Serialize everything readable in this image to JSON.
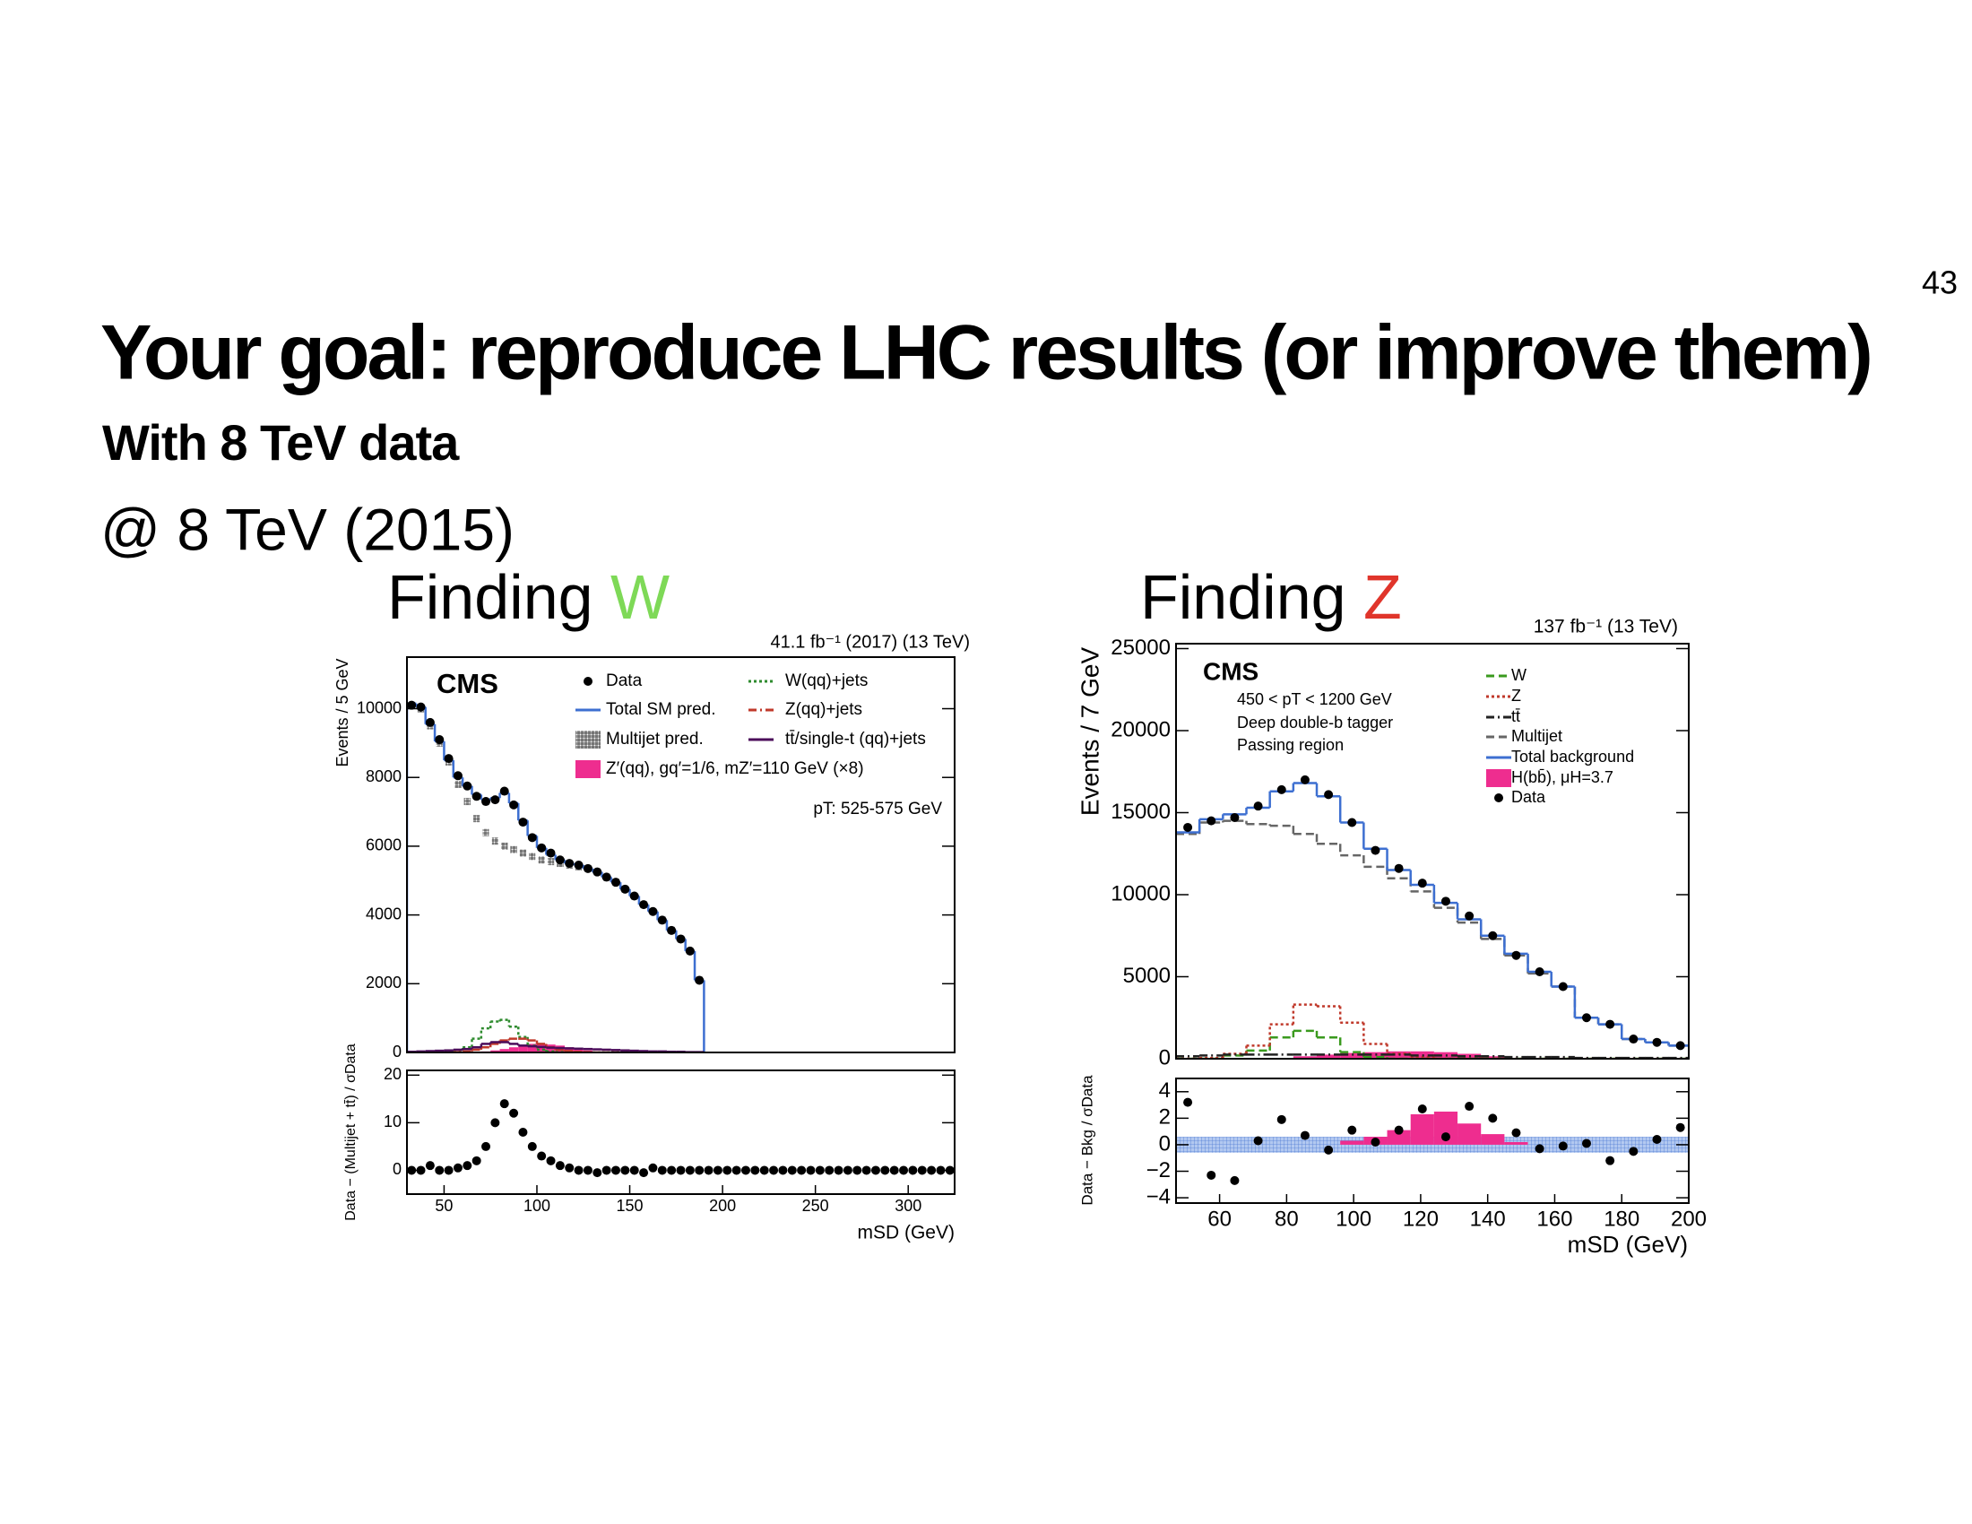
{
  "slide_number": "43",
  "title": "Your goal: reproduce LHC results (or improve them)",
  "subtitle": "With 8 TeV data",
  "note": "@ 8 TeV (2015)",
  "panels": [
    {
      "text": "Finding",
      "highlight": "W",
      "color": "#7ed957"
    },
    {
      "text": "Finding",
      "highlight": "Z",
      "color": "#e0352b"
    }
  ],
  "chart_data": [
    {
      "type": "histogram",
      "experiment": "CMS",
      "lumi": "41.1 fb⁻¹ (2017) (13 TeV)",
      "notes": [
        "pT: 525-575 GeV"
      ],
      "ylabel": "Events / 5 GeV",
      "xlim": [
        30,
        325
      ],
      "ylim": [
        0,
        11500
      ],
      "yticks": [
        0,
        2000,
        4000,
        6000,
        8000,
        10000
      ],
      "x": [
        32.5,
        37.5,
        42.5,
        47.5,
        52.5,
        57.5,
        62.5,
        67.5,
        72.5,
        77.5,
        82.5,
        87.5,
        92.5,
        97.5,
        102.5,
        107.5,
        112.5,
        117.5,
        122.5,
        127.5,
        132.5,
        137.5,
        142.5,
        147.5,
        152.5,
        157.5,
        162.5,
        167.5,
        172.5,
        177.5,
        182.5,
        187.5
      ],
      "series": [
        {
          "name": "Data",
          "color": "#000000",
          "style": "points",
          "values": [
            10100,
            10050,
            9600,
            9100,
            8550,
            8050,
            7750,
            7450,
            7300,
            7350,
            7600,
            7200,
            6700,
            6250,
            5950,
            5800,
            5600,
            5500,
            5450,
            5350,
            5250,
            5100,
            4950,
            4750,
            4550,
            4300,
            4100,
            3850,
            3550,
            3300,
            2950,
            2100
          ]
        },
        {
          "name": "Total SM pred.",
          "color": "#3d6fd1",
          "style": "step",
          "closed": true,
          "values": [
            10150,
            10050,
            9550,
            9050,
            8500,
            8000,
            7750,
            7500,
            7350,
            7400,
            7550,
            7250,
            6750,
            6300,
            5950,
            5750,
            5600,
            5500,
            5450,
            5350,
            5250,
            5100,
            4950,
            4750,
            4550,
            4300,
            4100,
            3850,
            3550,
            3300,
            2950,
            2100
          ]
        },
        {
          "name": "Multijet pred.",
          "color": "#333333",
          "style": "hatch",
          "values": [
            10100,
            10000,
            9500,
            9000,
            8450,
            7800,
            7300,
            6800,
            6400,
            6150,
            6000,
            5900,
            5800,
            5700,
            5600,
            5550,
            5500,
            5450,
            5400,
            5350,
            5250,
            5100,
            4950,
            4750,
            4550,
            4300,
            4100,
            3850,
            3550,
            3300,
            2950,
            2100
          ]
        },
        {
          "name": "W(qq)+jets",
          "color": "#2e8b2e",
          "style": "dotted",
          "values": [
            0,
            0,
            0,
            0,
            10,
            50,
            150,
            400,
            700,
            900,
            950,
            750,
            450,
            200,
            80,
            30,
            10,
            0,
            0,
            0,
            0,
            0,
            0,
            0,
            0,
            0,
            0,
            0,
            0,
            0,
            0,
            0
          ]
        },
        {
          "name": "Z(qq)+jets",
          "color": "#c0392b",
          "style": "dashdot",
          "values": [
            0,
            0,
            0,
            0,
            0,
            10,
            30,
            80,
            150,
            250,
            350,
            400,
            400,
            350,
            250,
            150,
            80,
            40,
            20,
            10,
            0,
            0,
            0,
            0,
            0,
            0,
            0,
            0,
            0,
            0,
            0,
            0
          ]
        },
        {
          "name": "tt̄/single-t (qq)+jets",
          "color": "#4b0c5a",
          "style": "step",
          "values": [
            20,
            30,
            40,
            50,
            60,
            80,
            100,
            150,
            250,
            300,
            300,
            250,
            200,
            180,
            160,
            140,
            130,
            120,
            110,
            100,
            90,
            80,
            70,
            60,
            50,
            40,
            30,
            30,
            20,
            20,
            10,
            10
          ]
        },
        {
          "name": "Z′(qq), gq′=1/6, mZ′=110 GeV (×8)",
          "color": "#ee2d8f",
          "style": "fill",
          "values": [
            0,
            0,
            0,
            0,
            0,
            0,
            0,
            10,
            30,
            60,
            100,
            150,
            200,
            250,
            250,
            230,
            200,
            150,
            100,
            60,
            30,
            10,
            0,
            0,
            0,
            0,
            0,
            0,
            0,
            0,
            0,
            0
          ]
        }
      ]
    },
    {
      "type": "ratio",
      "ylabel": "Data − (Multijet + tt̄) / σData",
      "xlabel": "mSD (GeV)",
      "xlim": [
        30,
        325
      ],
      "ylim": [
        -5,
        21
      ],
      "xticks": [
        50,
        100,
        150,
        200,
        250,
        300
      ],
      "yticks": [
        0,
        10,
        20
      ],
      "x": [
        32.5,
        37.5,
        42.5,
        47.5,
        52.5,
        57.5,
        62.5,
        67.5,
        72.5,
        77.5,
        82.5,
        87.5,
        92.5,
        97.5,
        102.5,
        107.5,
        112.5,
        117.5,
        122.5,
        127.5,
        132.5,
        137.5,
        142.5,
        147.5,
        152.5,
        157.5,
        162.5,
        167.5,
        172.5,
        177.5,
        182.5,
        187.5,
        192.5,
        197.5,
        202.5,
        207.5,
        212.5,
        217.5,
        222.5,
        227.5,
        232.5,
        237.5,
        242.5,
        247.5,
        252.5,
        257.5,
        262.5,
        267.5,
        272.5,
        277.5,
        282.5,
        287.5,
        292.5,
        297.5,
        302.5,
        307.5,
        312.5,
        317.5,
        322.5
      ],
      "series": [
        {
          "color": "#000000",
          "style": "points",
          "values": [
            0,
            0,
            1,
            0,
            0,
            0.5,
            1,
            2,
            5,
            10,
            14,
            12,
            8,
            5,
            3,
            2,
            1,
            0.5,
            0,
            0,
            -0.5,
            0,
            0,
            0,
            0,
            -0.5,
            0.5,
            0,
            0,
            0,
            0,
            0,
            0,
            0,
            0,
            0,
            0,
            0,
            0,
            0,
            0,
            0,
            0,
            0,
            0,
            0,
            0,
            0,
            0,
            0,
            0,
            0,
            0,
            0,
            0,
            0,
            0,
            0,
            0
          ]
        }
      ]
    },
    {
      "type": "histogram",
      "experiment": "CMS",
      "lumi": "137 fb⁻¹ (13 TeV)",
      "notes": [
        "450 < pT < 1200 GeV",
        "Deep double-b tagger",
        "Passing region"
      ],
      "ylabel": "Events / 7 GeV",
      "xlim": [
        47,
        200
      ],
      "ylim": [
        0,
        25300
      ],
      "yticks": [
        0,
        5000,
        10000,
        15000,
        20000,
        25000
      ],
      "x": [
        50.5,
        57.5,
        64.5,
        71.5,
        78.5,
        85.5,
        92.5,
        99.5,
        106.5,
        113.5,
        120.5,
        127.5,
        134.5,
        141.5,
        148.5,
        155.5,
        162.5,
        169.5,
        176.5,
        183.5,
        190.5,
        197.5
      ],
      "series": [
        {
          "name": "W",
          "color": "#3a9a1e",
          "style": "dashed",
          "values": [
            0,
            0,
            200,
            500,
            1300,
            1700,
            1300,
            400,
            100,
            0,
            0,
            0,
            0,
            0,
            0,
            0,
            0,
            0,
            0,
            0,
            0,
            0
          ]
        },
        {
          "name": "Z",
          "color": "#c0392b",
          "style": "dotted",
          "values": [
            0,
            50,
            300,
            800,
            2100,
            3300,
            3200,
            2200,
            900,
            300,
            100,
            0,
            0,
            0,
            0,
            0,
            0,
            0,
            0,
            0,
            0,
            0
          ]
        },
        {
          "name": "tt̄",
          "color": "#222222",
          "style": "dashdot",
          "values": [
            150,
            200,
            250,
            250,
            250,
            250,
            250,
            250,
            250,
            250,
            200,
            200,
            150,
            150,
            100,
            100,
            100,
            50,
            50,
            50,
            50,
            50
          ]
        },
        {
          "name": "Multijet",
          "color": "#666666",
          "style": "dashed",
          "values": [
            13700,
            14400,
            14500,
            14300,
            14200,
            13700,
            13100,
            12400,
            11700,
            11000,
            10200,
            9200,
            8300,
            7300,
            6300,
            5200,
            4400,
            2500,
            2100,
            1200,
            1000,
            800
          ]
        },
        {
          "name": "Total background",
          "color": "#3d6fd1",
          "style": "step",
          "values": [
            13800,
            14600,
            14900,
            15300,
            16300,
            16800,
            16000,
            14400,
            12800,
            11500,
            10600,
            9500,
            8500,
            7500,
            6400,
            5300,
            4400,
            2500,
            2100,
            1200,
            1000,
            800
          ]
        },
        {
          "name": "H(bb̄), μH=3.7",
          "color": "#ee2d8f",
          "style": "fill",
          "values": [
            0,
            0,
            0,
            0,
            50,
            150,
            250,
            350,
            400,
            450,
            450,
            400,
            300,
            150,
            50,
            0,
            0,
            0,
            0,
            0,
            0,
            0
          ]
        },
        {
          "name": "Data",
          "color": "#000000",
          "style": "points",
          "values": [
            14100,
            14500,
            14700,
            15400,
            16400,
            17000,
            16100,
            14400,
            12700,
            11600,
            10700,
            9600,
            8700,
            7500,
            6300,
            5300,
            4400,
            2500,
            2100,
            1200,
            1000,
            800
          ]
        }
      ]
    },
    {
      "type": "ratio",
      "ylabel": "Data − Bkg / σData",
      "xlabel": "mSD (GeV)",
      "xlim": [
        47,
        200
      ],
      "ylim": [
        -4.4,
        5
      ],
      "xticks": [
        60,
        80,
        100,
        120,
        140,
        160,
        180,
        200
      ],
      "yticks": [
        {
          "value": -4,
          "label": "−4"
        },
        {
          "value": -2,
          "label": "−2"
        },
        0,
        2,
        4
      ],
      "x": [
        50.5,
        57.5,
        64.5,
        71.5,
        78.5,
        85.5,
        92.5,
        99.5,
        106.5,
        113.5,
        120.5,
        127.5,
        134.5,
        141.5,
        148.5,
        155.5,
        162.5,
        169.5,
        176.5,
        183.5,
        190.5,
        197.5
      ],
      "series": [
        {
          "color": "#4a7bd0",
          "style": "band",
          "values": [
            0.6,
            0.6,
            0.6,
            0.6,
            0.6,
            0.6,
            0.6,
            0.6,
            0.6,
            0.6,
            0.6,
            0.6,
            0.6,
            0.6,
            0.6,
            0.6,
            0.6,
            0.6,
            0.6,
            0.6,
            0.6,
            0.6
          ]
        },
        {
          "color": "#ee2d8f",
          "style": "fill",
          "values": [
            0,
            0,
            0,
            0,
            0,
            0,
            0,
            0.3,
            0.6,
            1.1,
            2.3,
            2.5,
            1.6,
            0.8,
            0.2,
            0,
            0,
            0,
            0,
            0,
            0,
            0
          ]
        },
        {
          "color": "#000000",
          "style": "points",
          "values": [
            3.2,
            -2.3,
            -2.7,
            0.3,
            1.9,
            0.7,
            -0.4,
            1.1,
            0.2,
            1.1,
            2.7,
            0.6,
            2.9,
            2.0,
            0.9,
            -0.3,
            -0.1,
            0.1,
            -1.2,
            -0.5,
            0.4,
            1.3
          ]
        }
      ]
    }
  ]
}
